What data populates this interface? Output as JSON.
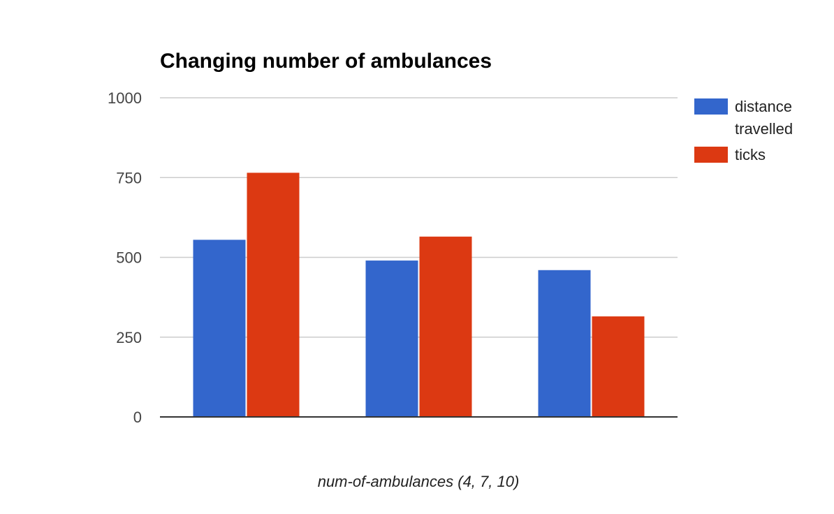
{
  "chart_data": {
    "type": "bar",
    "title": "Changing number of ambulances",
    "xlabel": "num-of-ambulances (4, 7, 10)",
    "ylabel": "",
    "categories": [
      "",
      "",
      ""
    ],
    "ylim": [
      0,
      1000
    ],
    "yticks": [
      "0",
      "250",
      "500",
      "750",
      "1000"
    ],
    "grid": true,
    "legend_position": "right",
    "series": [
      {
        "name": "distance travelled",
        "legend_lines": [
          "distance",
          "travelled"
        ],
        "color": "#3366cc",
        "values": [
          555,
          490,
          460
        ]
      },
      {
        "name": "ticks",
        "legend_lines": [
          "ticks"
        ],
        "color": "#dc3912",
        "values": [
          765,
          565,
          315
        ]
      }
    ]
  }
}
